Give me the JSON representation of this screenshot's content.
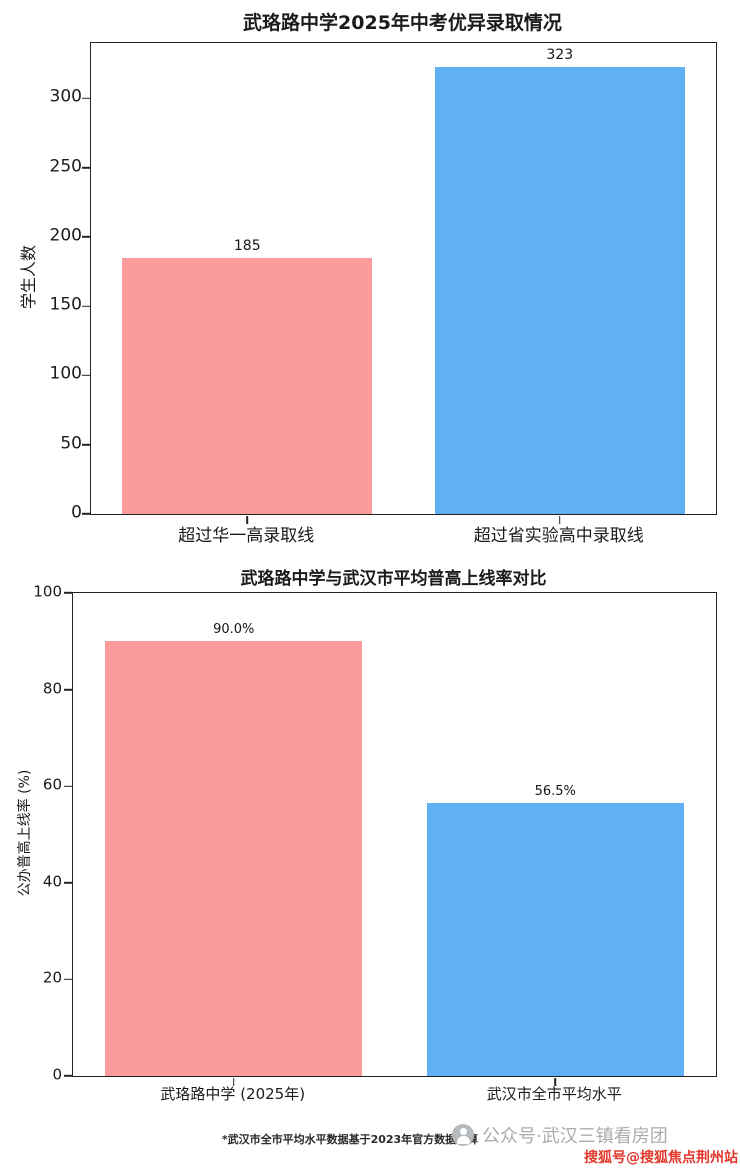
{
  "chart_data": [
    {
      "type": "bar",
      "title": "武珞路中学2025年中考优异录取情况",
      "ylabel": "学生人数",
      "xlabel": "",
      "categories": [
        "超过华一高录取线",
        "超过省实验高中录取线"
      ],
      "values": [
        185,
        323
      ],
      "value_labels": [
        "185",
        "323"
      ],
      "bar_colors": [
        "#fc9b9b",
        "#61aff5"
      ],
      "ylim": [
        0,
        340
      ],
      "yticks": [
        0,
        50,
        100,
        150,
        200,
        250,
        300
      ],
      "grid": "off",
      "legend": "none"
    },
    {
      "type": "bar",
      "title": "武珞路中学与武汉市平均普高上线率对比",
      "ylabel": "公办普高上线率 (%)",
      "xlabel": "",
      "categories": [
        "武珞路中学 (2025年)",
        "武汉市全市平均水平"
      ],
      "values": [
        90.0,
        56.5
      ],
      "value_labels": [
        "90.0%",
        "56.5%"
      ],
      "bar_colors": [
        "#fc9b9b",
        "#61aff5"
      ],
      "ylim": [
        0,
        100
      ],
      "yticks": [
        0,
        20,
        40,
        60,
        80,
        100
      ],
      "grid": "off",
      "legend": "none"
    }
  ],
  "footer": {
    "note": "*武汉市全市平均水平数据基于2023年官方数据测算",
    "watermark": "公众号·武汉三镇看房团",
    "source_badge": "搜狐号@搜狐焦点荆州站",
    "source_color": "#e2382c"
  },
  "colors": {
    "bar_pink": "#fc9b9b",
    "bar_blue": "#61aff5",
    "axis": "#242424",
    "watermark_gray": "#a9adb0"
  }
}
